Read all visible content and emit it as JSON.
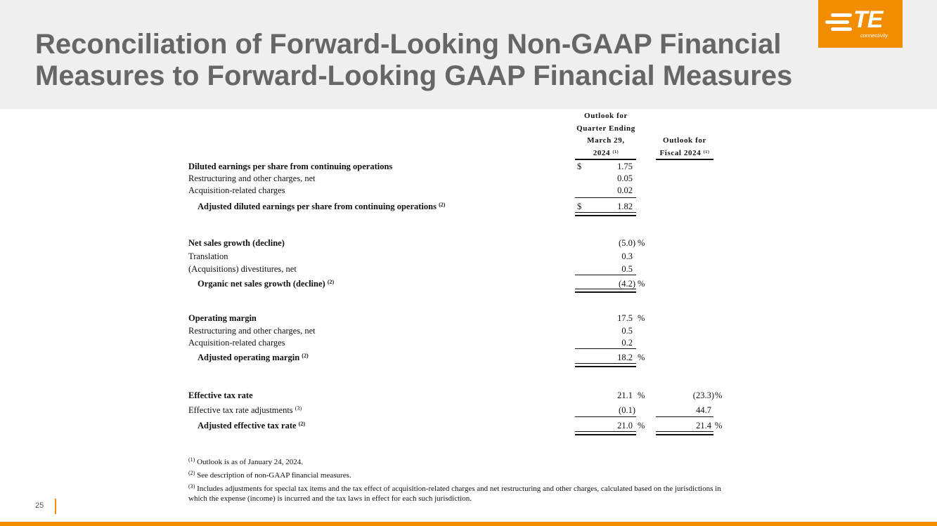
{
  "header": {
    "title_line1": "Reconciliation of Forward-Looking Non-GAAP Financial",
    "title_line2": "Measures to Forward-Looking GAAP Financial Measures",
    "logo_text": "TE",
    "logo_sub": "connectivity"
  },
  "columns": {
    "col1_line1": "Outlook for",
    "col1_line2": "Quarter Ending",
    "col1_line3": "March 29,",
    "col1_line4": "2024",
    "col1_note": "(1)",
    "col2_line1": "Outlook for",
    "col2_line2": "Fiscal 2024",
    "col2_note": "(1)"
  },
  "eps": {
    "label": "Diluted earnings per share from continuing operations",
    "currency": "$",
    "value": "1.75",
    "restructuring_label": "Restructuring and other charges, net",
    "restructuring_value": "0.05",
    "acquisition_label": "Acquisition-related charges",
    "acquisition_value": "0.02",
    "adjusted_label": "Adjusted diluted earnings per share from continuing operations",
    "adjusted_note": "(2)",
    "adjusted_currency": "$",
    "adjusted_value": "1.82"
  },
  "sales": {
    "label": "Net sales growth (decline)",
    "value": "(5.0)",
    "pct": "%",
    "translation_label": "Translation",
    "translation_value": "0.3",
    "divest_label": "(Acquisitions) divestitures, net",
    "divest_value": "0.5",
    "organic_label": "Organic net sales growth (decline)",
    "organic_note": "(2)",
    "organic_value": "(4.2)",
    "organic_pct": "%"
  },
  "margin": {
    "label": "Operating margin",
    "value": "17.5",
    "pct": "%",
    "restructuring_label": "Restructuring and other charges, net",
    "restructuring_value": "0.5",
    "acquisition_label": "Acquisition-related charges",
    "acquisition_value": "0.2",
    "adjusted_label": "Adjusted operating margin",
    "adjusted_note": "(2)",
    "adjusted_value": "18.2",
    "adjusted_pct": "%"
  },
  "tax": {
    "label": "Effective tax rate",
    "q_value": "21.1",
    "q_pct": "%",
    "fy_value": "(23.3)",
    "fy_pct": "%",
    "adj_label": "Effective tax rate adjustments",
    "adj_note": "(3)",
    "adj_q_value": "(0.1)",
    "adj_fy_value": "44.7",
    "adjusted_label": "Adjusted effective tax rate",
    "adjusted_note": "(2)",
    "adjusted_q_value": "21.0",
    "adjusted_q_pct": "%",
    "adjusted_fy_value": "21.4",
    "adjusted_fy_pct": "%"
  },
  "footnotes": {
    "n1_mark": "(1)",
    "n1_text": "Outlook is as of January 24, 2024.",
    "n2_mark": "(2)",
    "n2_text": "See description of non-GAAP financial measures.",
    "n3_mark": "(3)",
    "n3_text": "Includes adjustments for special tax items and the tax effect of acquisition-related charges and net restructuring and other charges, calculated based on the jurisdictions in which the expense (income) is incurred and the tax laws in effect for each such jurisdiction."
  },
  "page_number": "25",
  "colors": {
    "accent": "#f28c00",
    "title": "#666666",
    "header_bg": "#efefef"
  }
}
